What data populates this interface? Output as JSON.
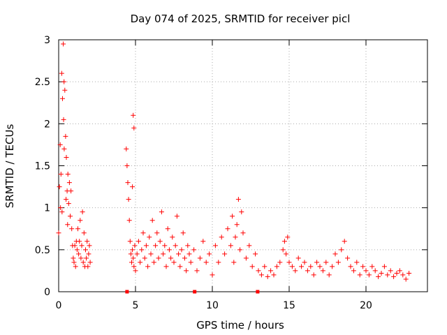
{
  "chart_data": {
    "type": "scatter",
    "title": "Day 074 of 2025, SRMTID for receiver picl",
    "xlabel": "GPS time / hours",
    "ylabel": "SRMTID / TECUs",
    "xlim": [
      0,
      24
    ],
    "ylim": [
      0,
      3
    ],
    "xticks": [
      0,
      5,
      10,
      15,
      20
    ],
    "xtick_labels": [
      "0",
      "5",
      "10",
      "15",
      "20"
    ],
    "yticks": [
      0,
      0.5,
      1,
      1.5,
      2,
      2.5,
      3
    ],
    "ytick_labels": [
      "0",
      "0.5",
      "1",
      "1.5",
      "2",
      "2.5",
      "3"
    ],
    "grid": true,
    "marker": "+",
    "color": "#ff0000",
    "series": [
      {
        "name": "SRMTID",
        "x": [
          0.0,
          0.05,
          0.1,
          0.15,
          0.2,
          0.25,
          0.3,
          0.35,
          0.4,
          0.45,
          0.5,
          0.55,
          0.6,
          0.65,
          0.7,
          0.75,
          0.8,
          0.85,
          0.9,
          0.95,
          1.0,
          1.05,
          1.1,
          1.15,
          1.2,
          1.25,
          1.3,
          1.35,
          1.4,
          1.45,
          1.5,
          1.55,
          1.6,
          1.65,
          1.7,
          1.75,
          1.8,
          1.85,
          1.9,
          1.95,
          2.0,
          2.05,
          0.32,
          0.36,
          0.22,
          0.48,
          0.58,
          0.12,
          4.4,
          4.45,
          4.5,
          4.55,
          4.6,
          4.65,
          4.7,
          4.75,
          4.8,
          4.85,
          4.9,
          4.95,
          5.0,
          5.1,
          5.2,
          5.3,
          5.4,
          5.5,
          5.6,
          5.7,
          5.8,
          5.9,
          6.0,
          6.1,
          6.2,
          6.3,
          6.4,
          6.5,
          6.6,
          6.7,
          6.8,
          6.9,
          7.0,
          7.1,
          7.2,
          7.3,
          7.4,
          7.5,
          7.6,
          7.7,
          7.8,
          7.9,
          8.0,
          8.1,
          8.2,
          8.3,
          8.4,
          8.5,
          4.85,
          4.9,
          4.8,
          8.6,
          8.8,
          9.0,
          9.2,
          9.4,
          9.6,
          9.8,
          10.0,
          10.2,
          10.4,
          10.6,
          10.8,
          11.0,
          11.2,
          11.4,
          11.6,
          11.8,
          12.0,
          12.2,
          12.4,
          12.6,
          12.8,
          11.7,
          11.9,
          11.5,
          11.3,
          13.0,
          13.2,
          13.4,
          13.6,
          13.8,
          14.0,
          14.2,
          14.4,
          14.6,
          14.7,
          14.8,
          14.9,
          15.0,
          15.2,
          15.4,
          15.6,
          15.8,
          16.0,
          16.2,
          16.4,
          16.6,
          16.8,
          17.0,
          17.2,
          17.4,
          17.6,
          17.8,
          18.0,
          18.2,
          18.4,
          18.6,
          18.8,
          19.0,
          19.2,
          19.4,
          19.6,
          19.8,
          20.0,
          20.2,
          20.4,
          20.6,
          20.8,
          21.0,
          21.2,
          21.4,
          21.6,
          21.8,
          22.0,
          22.2,
          22.4,
          22.6,
          22.8
        ],
        "y": [
          0.7,
          1.25,
          1.75,
          1.4,
          2.6,
          2.3,
          2.95,
          2.5,
          2.4,
          1.85,
          1.6,
          1.2,
          1.4,
          1.05,
          1.3,
          0.9,
          1.2,
          0.75,
          0.55,
          0.4,
          0.35,
          0.55,
          0.3,
          0.6,
          0.5,
          0.75,
          0.45,
          0.6,
          0.85,
          0.4,
          0.55,
          0.95,
          0.35,
          0.7,
          0.3,
          0.5,
          0.4,
          0.6,
          0.3,
          0.45,
          0.55,
          0.35,
          2.05,
          1.7,
          0.95,
          1.1,
          0.8,
          1.0,
          1.7,
          1.5,
          1.3,
          1.1,
          0.85,
          0.6,
          0.45,
          0.35,
          0.5,
          0.4,
          0.3,
          0.55,
          0.25,
          0.45,
          0.6,
          0.35,
          0.5,
          0.7,
          0.4,
          0.55,
          0.3,
          0.65,
          0.45,
          0.85,
          0.35,
          0.55,
          0.7,
          0.4,
          0.6,
          0.95,
          0.45,
          0.55,
          0.3,
          0.75,
          0.5,
          0.4,
          0.65,
          0.35,
          0.55,
          0.9,
          0.45,
          0.3,
          0.5,
          0.7,
          0.4,
          0.25,
          0.55,
          0.45,
          2.1,
          1.95,
          1.25,
          0.35,
          0.5,
          0.25,
          0.4,
          0.6,
          0.35,
          0.45,
          0.2,
          0.55,
          0.35,
          0.65,
          0.45,
          0.75,
          0.55,
          0.35,
          0.8,
          0.5,
          0.7,
          0.4,
          0.55,
          0.3,
          0.45,
          1.1,
          0.95,
          0.65,
          0.9,
          0.25,
          0.2,
          0.3,
          0.18,
          0.25,
          0.2,
          0.3,
          0.35,
          0.5,
          0.6,
          0.45,
          0.65,
          0.35,
          0.3,
          0.25,
          0.4,
          0.3,
          0.35,
          0.25,
          0.3,
          0.2,
          0.35,
          0.3,
          0.25,
          0.35,
          0.2,
          0.3,
          0.45,
          0.35,
          0.5,
          0.6,
          0.4,
          0.3,
          0.25,
          0.35,
          0.2,
          0.3,
          0.25,
          0.2,
          0.3,
          0.25,
          0.18,
          0.22,
          0.3,
          0.2,
          0.25,
          0.18,
          0.22,
          0.25,
          0.2,
          0.15,
          0.22
        ]
      }
    ],
    "data_gaps_markers_x": [
      4.45,
      8.85,
      12.95
    ]
  }
}
